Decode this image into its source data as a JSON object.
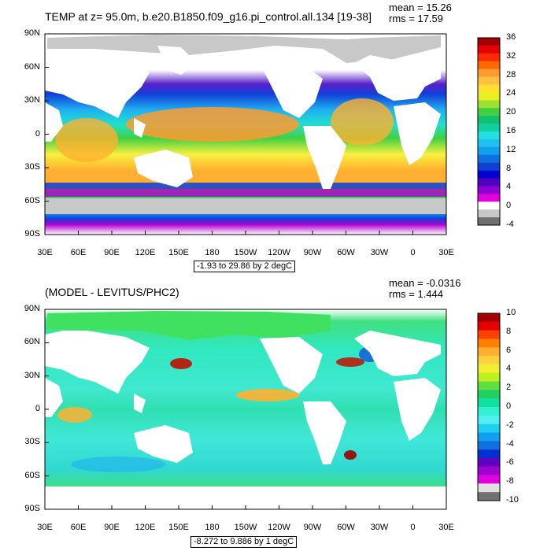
{
  "panels": [
    {
      "id": "temp",
      "title": "TEMP at z=  95.0m, b.e20.B1850.f09_g16.pi_control.all.134 [19-38]",
      "mean_text": "mean = 15.26",
      "rms_text": "rms = 17.59",
      "range_text": "-1.93 to 29.86 by 2 degC",
      "colorbar_labels": [
        "36",
        "32",
        "28",
        "24",
        "20",
        "16",
        "12",
        "8",
        "4",
        "0",
        "-4"
      ],
      "colorbar_colors": [
        "#a50000",
        "#e60000",
        "#ff2a00",
        "#ff6a00",
        "#ff9a30",
        "#ffc040",
        "#ffe030",
        "#e8f020",
        "#a0e030",
        "#40d040",
        "#10c070",
        "#10d0a0",
        "#20e0e0",
        "#20c0f0",
        "#10a0f0",
        "#1070e0",
        "#1040d0",
        "#0000d0",
        "#5000c0",
        "#9000d0",
        "#e000e0",
        "#ffffff",
        "#c8c8c8",
        "#707070"
      ]
    },
    {
      "id": "diff",
      "title": "(MODEL - LEVITUS/PHC2)",
      "mean_text": "mean = -0.0316",
      "rms_text": "rms = 1.444",
      "range_text": "-8.272 to 9.886 by 1 degC",
      "colorbar_labels": [
        "10",
        "8",
        "6",
        "4",
        "2",
        "0",
        "-2",
        "-4",
        "-6",
        "-8",
        "-10"
      ],
      "colorbar_colors": [
        "#a50000",
        "#e60000",
        "#ff4000",
        "#ff8000",
        "#ffb030",
        "#ffd040",
        "#f0f030",
        "#c0f020",
        "#60e040",
        "#20d060",
        "#10e0a0",
        "#30f0d0",
        "#50f0f0",
        "#20d0f0",
        "#10a0f0",
        "#1070e0",
        "#0030d0",
        "#6000c0",
        "#a000d0",
        "#e000e0",
        "#e0e0e0",
        "#707070"
      ]
    }
  ],
  "y_axis_labels": [
    "90N",
    "60N",
    "30N",
    "0",
    "30S",
    "60S",
    "90S"
  ],
  "x_axis_labels": [
    "30E",
    "60E",
    "90E",
    "120E",
    "150E",
    "180",
    "150W",
    "120W",
    "90W",
    "60W",
    "30W",
    "0",
    "30E"
  ]
}
